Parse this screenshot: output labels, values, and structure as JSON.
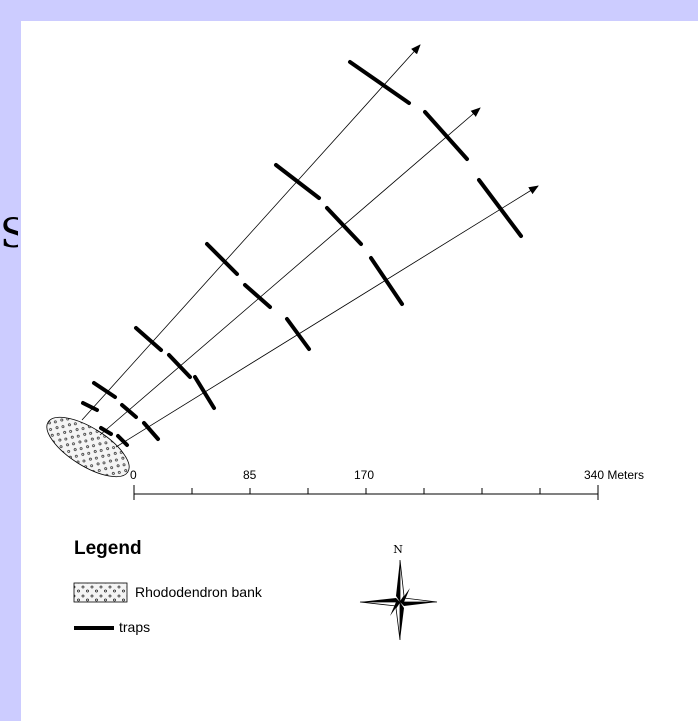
{
  "page": {
    "edge_glyph": "S",
    "background": "#ccccff",
    "panel_color": "#ffffff"
  },
  "scalebar": {
    "labels": [
      "0",
      "85",
      "170",
      "340 Meters"
    ]
  },
  "legend": {
    "title": "Legend",
    "items": [
      {
        "label": "Rhododendron bank",
        "symbol": "stippled-fill"
      },
      {
        "label": "traps",
        "symbol": "thick-line"
      }
    ]
  },
  "north_arrow": {
    "label": "N"
  },
  "colors": {
    "ink": "#000000",
    "rhododendron_fill": "#f4f4f4"
  }
}
